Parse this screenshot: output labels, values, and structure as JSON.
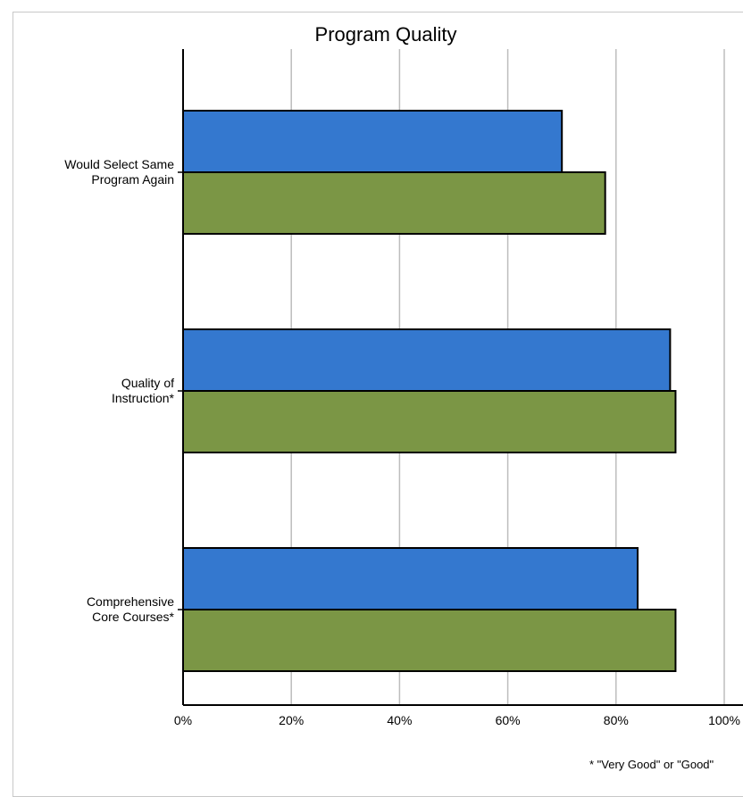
{
  "chart_data": {
    "type": "bar",
    "orientation": "horizontal",
    "title": "Program Quality",
    "categories": [
      [
        "Would Select Same",
        "Program Again"
      ],
      [
        "Quality of",
        "Instruction*"
      ],
      [
        "Comprehensive",
        "Core Courses*"
      ]
    ],
    "series": [
      {
        "color": "#3478cf",
        "values": [
          70,
          90,
          84
        ]
      },
      {
        "color": "#7b9645",
        "values": [
          78,
          91,
          91
        ]
      }
    ],
    "x_ticks": [
      "0%",
      "20%",
      "40%",
      "60%",
      "80%",
      "100%"
    ],
    "xlim": [
      0,
      100
    ],
    "grid": true,
    "footnote": "* \"Very Good\" or \"Good\""
  }
}
